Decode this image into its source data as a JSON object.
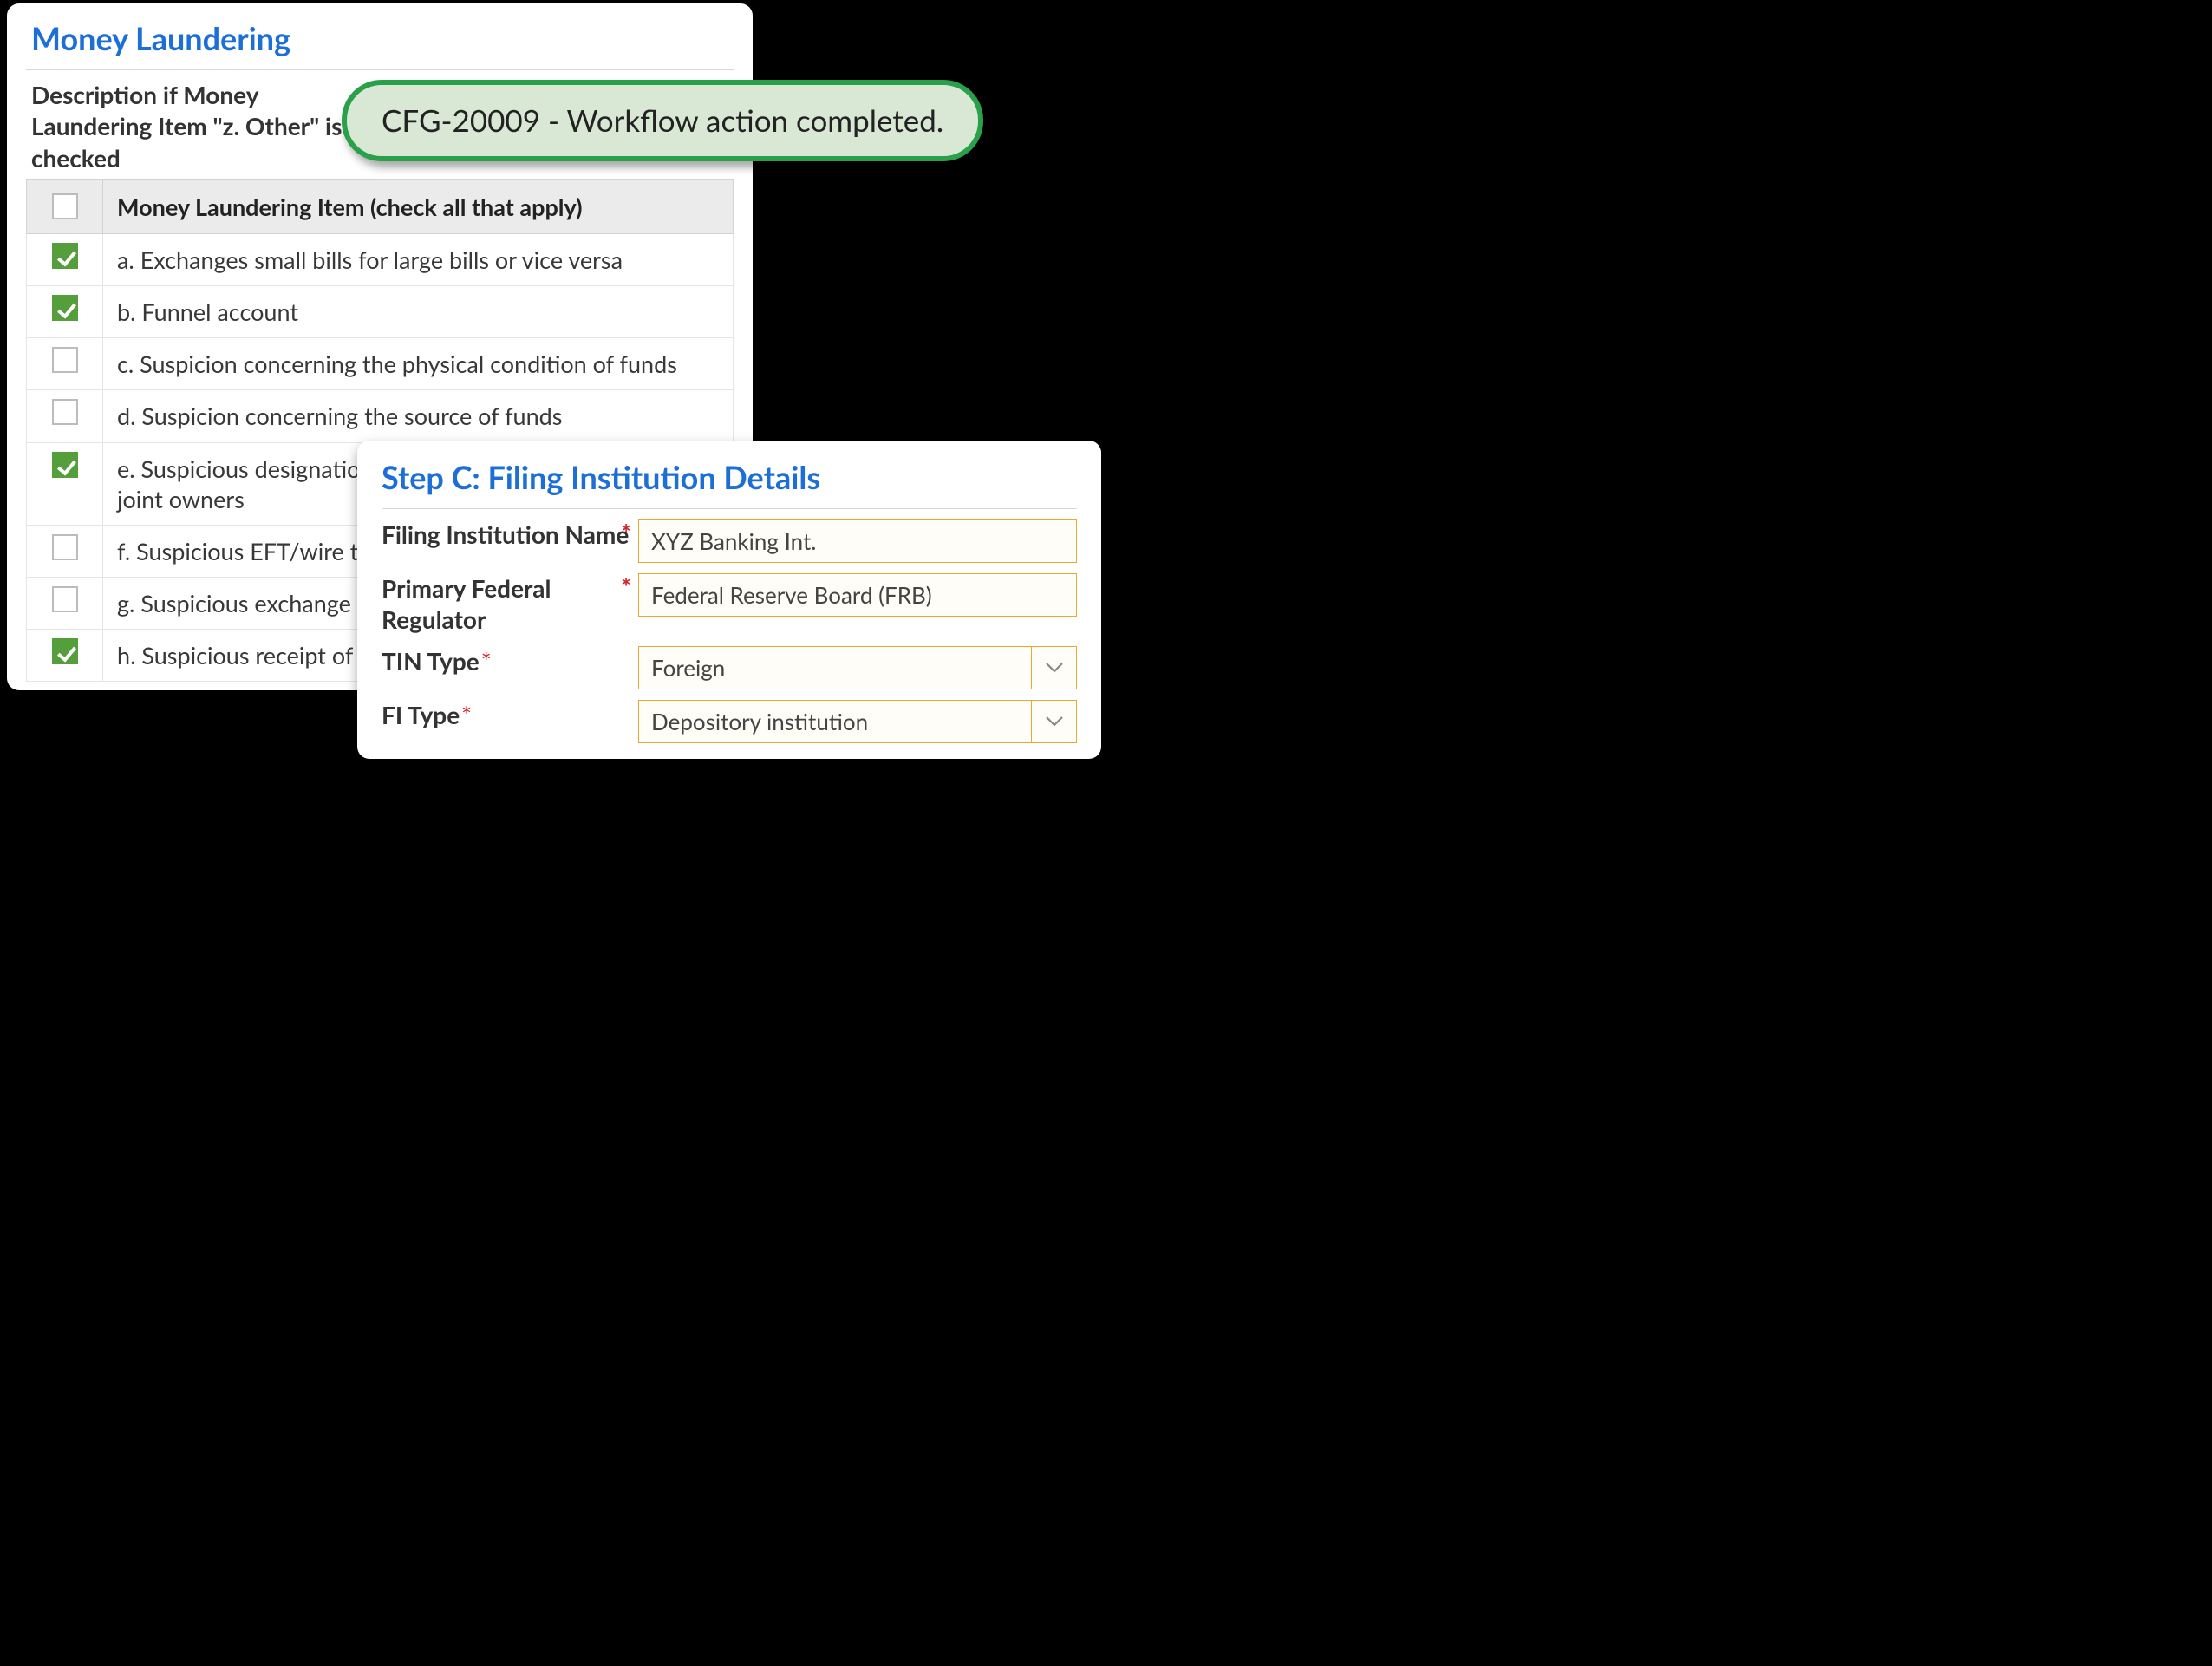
{
  "ml": {
    "title": "Money Laundering",
    "desc_label": "Description if Money Laundering Item \"z. Other\" is checked",
    "header_label": "Money Laundering Item (check all that apply)",
    "items": [
      {
        "checked": true,
        "label": "a. Exchanges small bills for large bills or vice versa"
      },
      {
        "checked": true,
        "label": "b. Funnel account"
      },
      {
        "checked": false,
        "label": "c. Suspicion concerning the physical condition of funds"
      },
      {
        "checked": false,
        "label": "d. Suspicion concerning the source of funds"
      },
      {
        "checked": true,
        "label": "e. Suspicious designation of beneficiaries, assignees or joint owners"
      },
      {
        "checked": false,
        "label": "f. Suspicious EFT/wire transfers"
      },
      {
        "checked": false,
        "label": "g. Suspicious exchange of currencies"
      },
      {
        "checked": true,
        "label": "h. Suspicious receipt of government payments/benefits"
      }
    ]
  },
  "toast": {
    "message": "CFG-20009 - Workflow action completed."
  },
  "stepc": {
    "title": "Step C: Filing Institution Details",
    "fields": {
      "filing_name": {
        "label": "Filing Institution Name",
        "value": "XYZ Banking Int."
      },
      "primary_reg": {
        "label": "Primary Federal Regulator",
        "value": "Federal Reserve Board (FRB)"
      },
      "tin_type": {
        "label": "TIN Type",
        "value": "Foreign"
      },
      "fi_type": {
        "label": "FI Type",
        "value": "Depository institution"
      }
    }
  },
  "colors": {
    "accent_blue": "#1d6fd8",
    "check_green": "#549f3c",
    "toast_border": "#2aa04b",
    "toast_bg": "#d9e8d4",
    "input_border": "#e7a92e",
    "required_red": "#d6202a"
  }
}
